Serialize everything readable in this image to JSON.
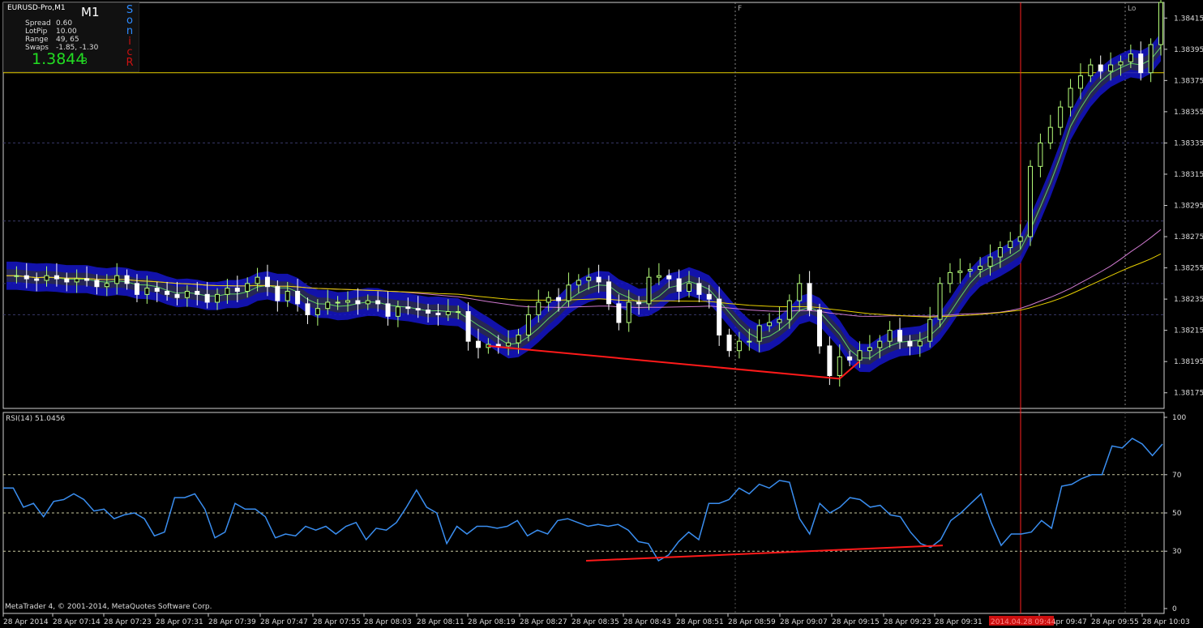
{
  "window": {
    "symbol": "EURUSD-Pro,M1",
    "timeframe": "M1",
    "sonic_letters": [
      "S",
      "o",
      "n",
      "i",
      "c",
      "R"
    ],
    "info": [
      {
        "label": "Spread",
        "value": "0.60"
      },
      {
        "label": "LotPip",
        "value": "10.00"
      },
      {
        "label": "Range",
        "value": "49, 65"
      },
      {
        "label": "Swaps",
        "value": "-1.85, -1.30"
      }
    ],
    "bid_main": "1.3844",
    "bid_sub": "3",
    "colors": {
      "background": "#000000",
      "bull": "#b6ff7a",
      "bear": "#ffffff",
      "band": "#1515c8",
      "ema_yellow": "#e8d000",
      "ema_violet": "#d07ad0",
      "rsi": "#3a8ef0",
      "divergence": "#ff1a1a",
      "time_marker": "#ff2020"
    }
  },
  "markers": {
    "F": "F",
    "Lo": "Lo",
    "highlight_time": "2014.04.28 09:44"
  },
  "rsi_label": "RSI(14) 51.0456",
  "footer": "MetaTrader 4, © 2001-2014, MetaQuotes Software Corp.",
  "chart_data": [
    {
      "type": "candlestick",
      "title": "EURUSD-Pro,M1",
      "y_ticks": [
        "1.38415",
        "1.38395",
        "1.38375",
        "1.38355",
        "1.38335",
        "1.38315",
        "1.38295",
        "1.38275",
        "1.38255",
        "1.38235",
        "1.38215",
        "1.38195",
        "1.38175"
      ],
      "ylim": [
        1.38165,
        1.38425
      ],
      "x_ticks": [
        "28 Apr 2014",
        "28 Apr 07:14",
        "28 Apr 07:23",
        "28 Apr 07:31",
        "28 Apr 07:39",
        "28 Apr 07:47",
        "28 Apr 07:55",
        "28 Apr 08:03",
        "28 Apr 08:11",
        "28 Apr 08:19",
        "28 Apr 08:27",
        "28 Apr 08:35",
        "28 Apr 08:43",
        "28 Apr 08:51",
        "28 Apr 08:59",
        "28 Apr 09:07",
        "28 Apr 09:15",
        "28 Apr 09:23",
        "28 Apr 09:31",
        "28 Apr 09:47",
        "28 Apr 09:55",
        "28 Apr 10:03"
      ],
      "price_path": [
        1.3825,
        1.3825,
        1.38248,
        1.38247,
        1.3825,
        1.38248,
        1.38246,
        1.38248,
        1.38247,
        1.38243,
        1.38245,
        1.3825,
        1.38245,
        1.38238,
        1.38242,
        1.3824,
        1.38238,
        1.38236,
        1.3824,
        1.38238,
        1.38233,
        1.38238,
        1.38242,
        1.3824,
        1.38245,
        1.38249,
        1.38243,
        1.38234,
        1.3824,
        1.38232,
        1.38225,
        1.38229,
        1.38233,
        1.38233,
        1.38234,
        1.38232,
        1.38234,
        1.38232,
        1.38224,
        1.3823,
        1.38229,
        1.38228,
        1.38226,
        1.38225,
        1.38227,
        1.38227,
        1.38208,
        1.38204,
        1.38206,
        1.38205,
        1.38207,
        1.38212,
        1.38225,
        1.38233,
        1.38236,
        1.38234,
        1.38244,
        1.38247,
        1.38249,
        1.38246,
        1.38232,
        1.3822,
        1.38233,
        1.38232,
        1.38249,
        1.3825,
        1.38248,
        1.3824,
        1.38245,
        1.38238,
        1.38235,
        1.38212,
        1.38202,
        1.38208,
        1.38208,
        1.38218,
        1.3822,
        1.38222,
        1.38234,
        1.38245,
        1.38228,
        1.38205,
        1.38186,
        1.38198,
        1.38196,
        1.38202,
        1.38204,
        1.38208,
        1.38215,
        1.38208,
        1.38205,
        1.38208,
        1.38222,
        1.38245,
        1.38252,
        1.38253,
        1.38254,
        1.38256,
        1.38262,
        1.38268,
        1.38272,
        1.38275,
        1.3832,
        1.38335,
        1.38345,
        1.38358,
        1.3837,
        1.38378,
        1.38385,
        1.38381,
        1.38385,
        1.38387,
        1.38392,
        1.3838,
        1.38398,
        1.38425
      ],
      "horizontal_line": 1.3838,
      "divergence_line": [
        [
          1.38205,
          48
        ],
        [
          1.38184,
          83
        ]
      ],
      "vertical_markers": [
        "F",
        "highlight_time",
        "Lo"
      ]
    },
    {
      "type": "line",
      "title": "RSI(14) 51.0456",
      "y_ticks": [
        "100",
        "70",
        "50",
        "30",
        "0"
      ],
      "ylim": [
        0,
        100
      ],
      "levels": [
        70,
        50,
        30
      ],
      "values": [
        63,
        63,
        53,
        55,
        48,
        56,
        57,
        60,
        57,
        51,
        52,
        47,
        49,
        50,
        47,
        38,
        40,
        58,
        58,
        60,
        52,
        37,
        40,
        55,
        52,
        52,
        48,
        37,
        39,
        38,
        43,
        41,
        43,
        39,
        43,
        45,
        36,
        42,
        41,
        45,
        53,
        62,
        53,
        50,
        34,
        43,
        39,
        43,
        43,
        42,
        43,
        46,
        38,
        41,
        39,
        46,
        47,
        45,
        43,
        44,
        43,
        44,
        41,
        35,
        34,
        25,
        28,
        35,
        40,
        36,
        55,
        55,
        57,
        63,
        60,
        65,
        63,
        67,
        66,
        47,
        39,
        55,
        50,
        53,
        58,
        57,
        53,
        54,
        49,
        48,
        40,
        34,
        32,
        36,
        46,
        50,
        55,
        60,
        45,
        33,
        39,
        39,
        40,
        46,
        42,
        64,
        65,
        68,
        70,
        70,
        85,
        84,
        89,
        86,
        80,
        86
      ],
      "divergence_line": [
        [
          25,
          65
        ],
        [
          33,
          100
        ]
      ]
    }
  ]
}
